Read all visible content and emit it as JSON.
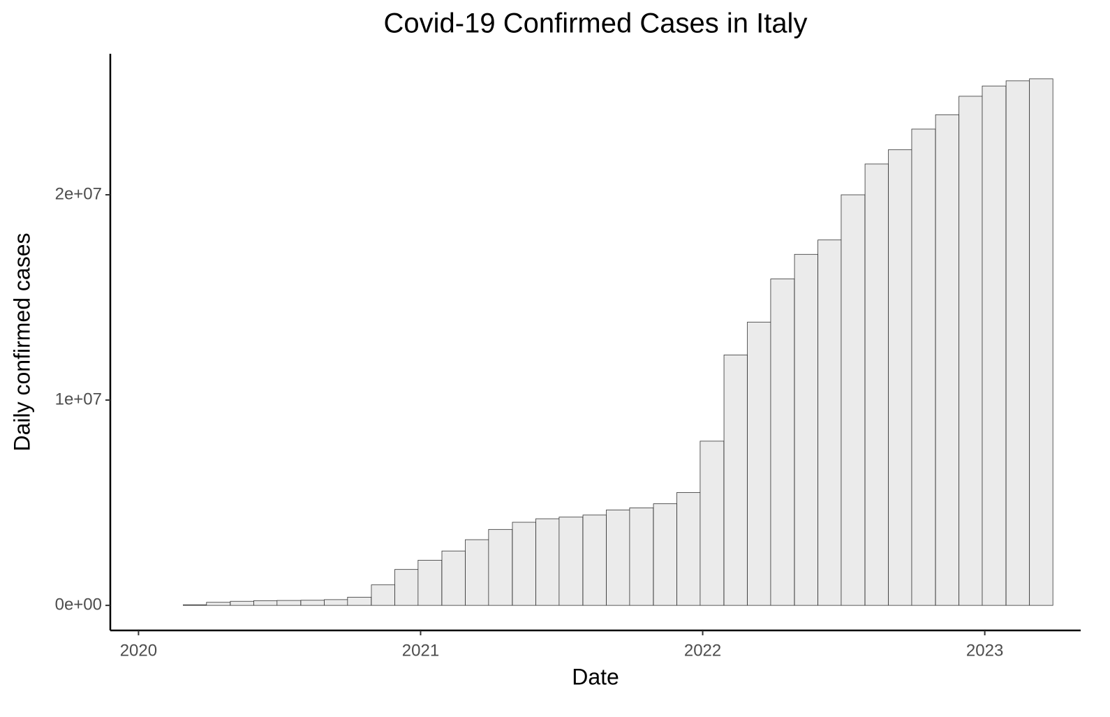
{
  "chart_data": {
    "type": "bar",
    "title": "Covid-19 Confirmed Cases in Italy",
    "x_label": "Date",
    "y_label": "Daily confirmed cases",
    "x": [
      2020.2,
      2020.283,
      2020.367,
      2020.45,
      2020.533,
      2020.617,
      2020.7,
      2020.783,
      2020.867,
      2020.95,
      2021.033,
      2021.117,
      2021.2,
      2021.283,
      2021.367,
      2021.45,
      2021.533,
      2021.617,
      2021.7,
      2021.783,
      2021.867,
      2021.95,
      2022.033,
      2022.117,
      2022.2,
      2022.283,
      2022.367,
      2022.45,
      2022.533,
      2022.617,
      2022.7,
      2022.783,
      2022.867,
      2022.95,
      2023.033,
      2023.117,
      2023.2
    ],
    "values": [
      30000,
      150000,
      200000,
      230000,
      240000,
      250000,
      280000,
      400000,
      1000000,
      1750000,
      2200000,
      2650000,
      3200000,
      3700000,
      4050000,
      4220000,
      4300000,
      4400000,
      4650000,
      4750000,
      4950000,
      5500000,
      8000000,
      12200000,
      13800000,
      15900000,
      17100000,
      17800000,
      20000000,
      21500000,
      22200000,
      23200000,
      23900000,
      24800000,
      25300000,
      25550000,
      25650000
    ],
    "color": "#ebebeb",
    "edge_color": "#333333",
    "xlim": [
      2019.9,
      2023.34
    ],
    "xticks": [
      2020,
      2021,
      2022,
      2023
    ],
    "ylim": [
      -1220000,
      26870000
    ],
    "yticks": [
      {
        "value": 0,
        "label": "0e+00"
      },
      {
        "value": 10000000,
        "label": "1e+07"
      },
      {
        "value": 20000000,
        "label": "2e+07"
      }
    ],
    "grid": false
  }
}
